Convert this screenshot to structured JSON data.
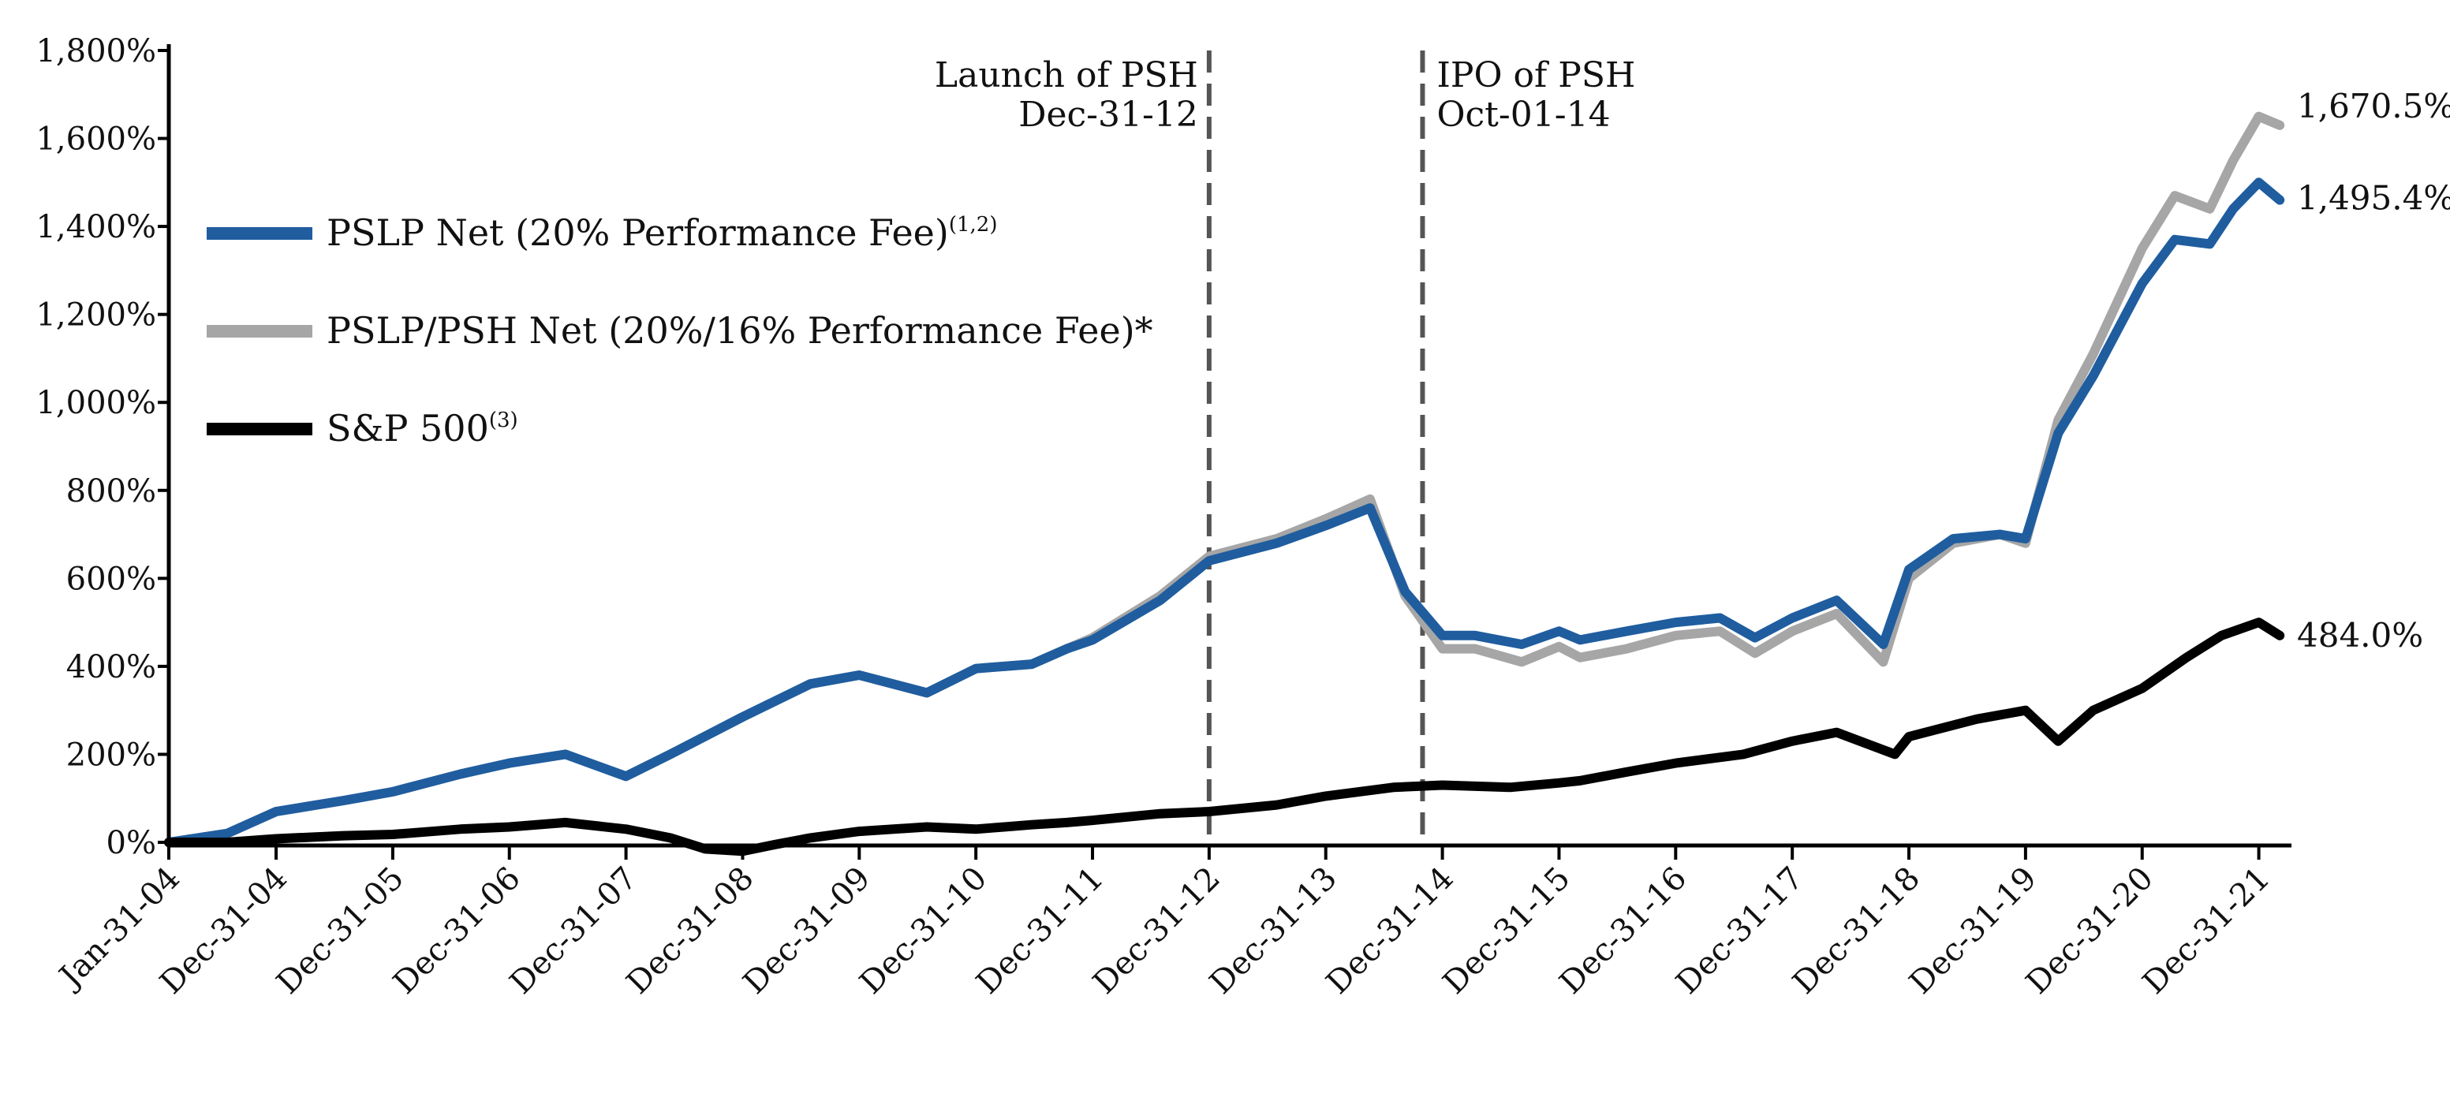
{
  "chart_data": {
    "type": "line",
    "title": "",
    "xlabel": "",
    "ylabel": "",
    "ylim": [
      0,
      1800
    ],
    "y_ticks": [
      0,
      200,
      400,
      600,
      800,
      1000,
      1200,
      1400,
      1600,
      1800
    ],
    "y_tick_labels": [
      "0%",
      "200%",
      "400%",
      "600%",
      "800%",
      "1,000%",
      "1,200%",
      "1,400%",
      "1,600%",
      "1,800%"
    ],
    "x_range": [
      2004.0,
      2022.2
    ],
    "x_ticks": [
      2004.0,
      2004.92,
      2005.92,
      2006.92,
      2007.92,
      2008.92,
      2009.92,
      2010.92,
      2011.92,
      2012.92,
      2013.92,
      2014.92,
      2015.92,
      2016.92,
      2017.92,
      2018.92,
      2019.92,
      2020.92,
      2021.92
    ],
    "x_tick_labels": [
      "Jan-31-04",
      "Dec-31-04",
      "Dec-31-05",
      "Dec-31-06",
      "Dec-31-07",
      "Dec-31-08",
      "Dec-31-09",
      "Dec-31-10",
      "Dec-31-11",
      "Dec-31-12",
      "Dec-31-13",
      "Dec-31-14",
      "Dec-31-15",
      "Dec-31-16",
      "Dec-31-17",
      "Dec-31-18",
      "Dec-31-19",
      "Dec-31-20",
      "Dec-31-21"
    ],
    "legend_position": "left",
    "series": [
      {
        "name": "PSLP/PSH Net (20%/16% Performance Fee)*",
        "legend_label": "PSLP/PSH Net (20%/16% Performance Fee)*",
        "legend_sup": "",
        "color": "#a6a6a6",
        "end_label": "1,670.5%",
        "x": [
          2004.0,
          2004.5,
          2004.92,
          2005.5,
          2005.92,
          2006.5,
          2006.92,
          2007.4,
          2007.92,
          2008.3,
          2008.92,
          2009.5,
          2009.92,
          2010.5,
          2010.92,
          2011.4,
          2011.7,
          2011.92,
          2012.5,
          2012.92,
          2013.5,
          2013.92,
          2014.3,
          2014.6,
          2014.92,
          2015.2,
          2015.6,
          2015.92,
          2016.1,
          2016.5,
          2016.92,
          2017.3,
          2017.6,
          2017.92,
          2018.3,
          2018.7,
          2018.92,
          2019.3,
          2019.7,
          2019.92,
          2020.2,
          2020.5,
          2020.92,
          2021.2,
          2021.5,
          2021.7,
          2021.92,
          2022.1
        ],
        "values": [
          0,
          20,
          70,
          95,
          115,
          155,
          180,
          200,
          150,
          200,
          285,
          360,
          380,
          340,
          395,
          405,
          440,
          465,
          560,
          650,
          690,
          735,
          780,
          560,
          440,
          440,
          410,
          445,
          420,
          440,
          470,
          480,
          430,
          480,
          520,
          410,
          600,
          680,
          700,
          680,
          960,
          1110,
          1350,
          1470,
          1440,
          1550,
          1650,
          1630
        ]
      },
      {
        "name": "PSLP Net (20% Performance Fee)",
        "legend_label": "PSLP Net (20% Performance Fee)",
        "legend_sup": "(1,2)",
        "color": "#1f5d9f",
        "end_label": "1,495.4%",
        "x": [
          2004.0,
          2004.5,
          2004.92,
          2005.5,
          2005.92,
          2006.5,
          2006.92,
          2007.4,
          2007.92,
          2008.3,
          2008.92,
          2009.5,
          2009.92,
          2010.5,
          2010.92,
          2011.4,
          2011.7,
          2011.92,
          2012.5,
          2012.92,
          2013.5,
          2013.92,
          2014.3,
          2014.6,
          2014.92,
          2015.2,
          2015.6,
          2015.92,
          2016.1,
          2016.5,
          2016.92,
          2017.3,
          2017.6,
          2017.92,
          2018.3,
          2018.7,
          2018.92,
          2019.3,
          2019.7,
          2019.92,
          2020.2,
          2020.5,
          2020.92,
          2021.2,
          2021.5,
          2021.7,
          2021.92,
          2022.1
        ],
        "values": [
          0,
          20,
          70,
          95,
          115,
          155,
          180,
          200,
          150,
          200,
          285,
          360,
          380,
          340,
          395,
          405,
          440,
          460,
          550,
          640,
          680,
          720,
          760,
          570,
          470,
          470,
          450,
          480,
          460,
          480,
          500,
          510,
          465,
          510,
          550,
          450,
          620,
          690,
          700,
          690,
          930,
          1060,
          1270,
          1370,
          1360,
          1440,
          1500,
          1460
        ]
      },
      {
        "name": "S&P 500",
        "legend_label": "S&P 500",
        "legend_sup": "(3)",
        "color": "#000000",
        "end_label": "484.0%",
        "x": [
          2004.0,
          2004.5,
          2004.92,
          2005.5,
          2005.92,
          2006.5,
          2006.92,
          2007.4,
          2007.92,
          2008.3,
          2008.6,
          2008.92,
          2009.2,
          2009.5,
          2009.92,
          2010.5,
          2010.92,
          2011.4,
          2011.7,
          2011.92,
          2012.5,
          2012.92,
          2013.5,
          2013.92,
          2014.5,
          2014.92,
          2015.5,
          2015.92,
          2016.1,
          2016.5,
          2016.92,
          2017.5,
          2017.92,
          2018.3,
          2018.8,
          2018.92,
          2019.5,
          2019.92,
          2020.2,
          2020.5,
          2020.92,
          2021.3,
          2021.6,
          2021.92,
          2022.1
        ],
        "values": [
          0,
          0,
          8,
          15,
          18,
          30,
          35,
          45,
          30,
          10,
          -15,
          -20,
          -5,
          10,
          25,
          35,
          30,
          40,
          45,
          50,
          65,
          70,
          85,
          105,
          125,
          130,
          125,
          135,
          140,
          160,
          180,
          200,
          230,
          250,
          200,
          240,
          280,
          300,
          230,
          300,
          350,
          420,
          470,
          500,
          470
        ]
      }
    ],
    "annotations": [
      {
        "x": 2012.92,
        "line1": "Launch of PSH",
        "line2": "Dec-31-12"
      },
      {
        "x": 2014.75,
        "line1": "IPO of PSH",
        "line2": "Oct-01-14"
      }
    ]
  }
}
